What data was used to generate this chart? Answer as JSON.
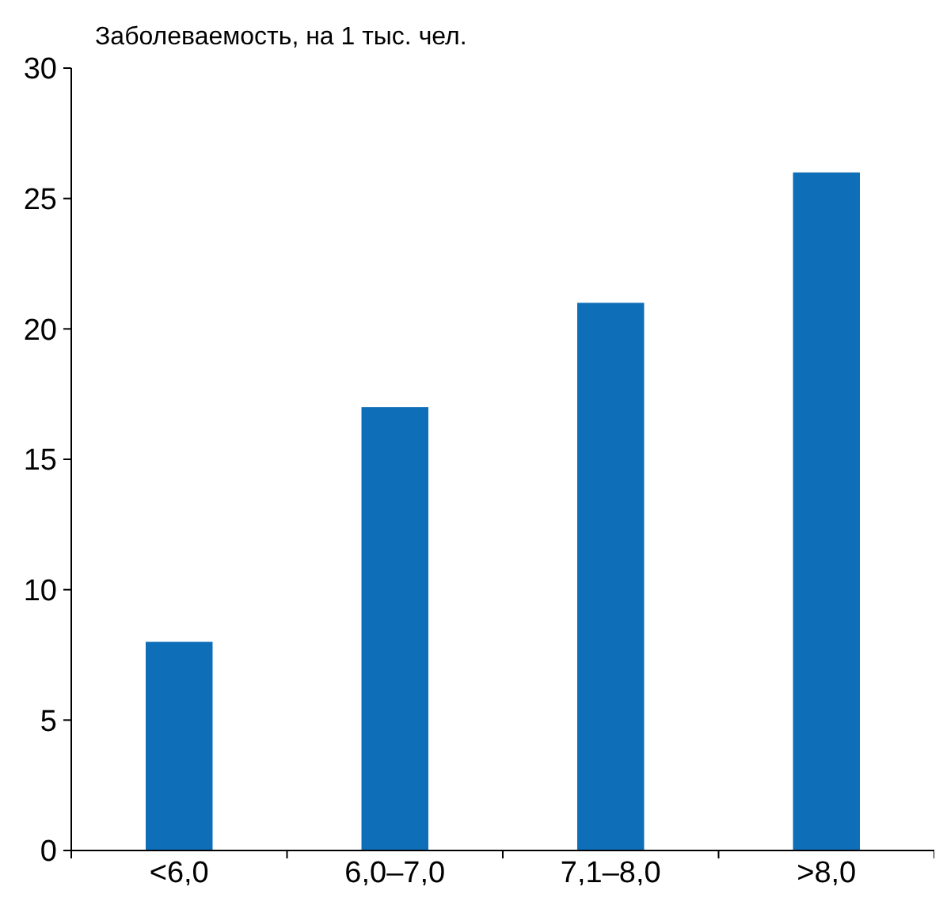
{
  "chart_data": {
    "type": "bar",
    "ylabel": "Заболеваемость, на 1 тыс. чел.",
    "categories": [
      "<6,0",
      "6,0–7,0",
      "7,1–8,0",
      ">8,0"
    ],
    "values": [
      8,
      17,
      21,
      26
    ],
    "color": "#0e6eb8",
    "ylim": [
      0,
      30
    ],
    "yticks": [
      0,
      5,
      10,
      15,
      20,
      25,
      30
    ],
    "grid": false
  }
}
